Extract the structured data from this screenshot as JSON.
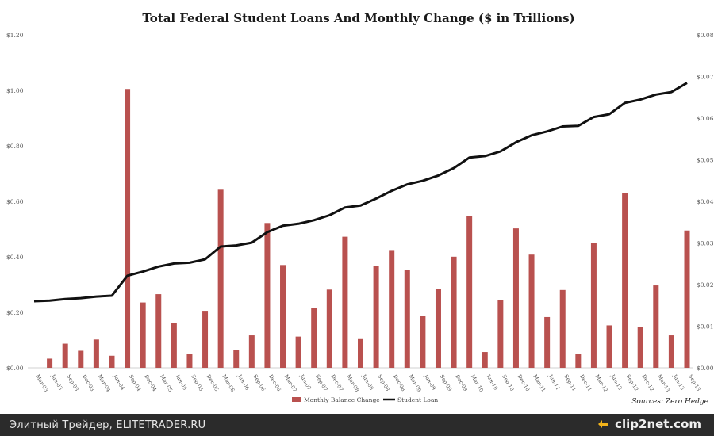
{
  "chart_data": {
    "type": "bar+line",
    "title": "Total Federal Student Loans And Monthly Change ($ in Trillions)",
    "y_left": {
      "ticks": [
        "$0.00",
        "$0.20",
        "$0.40",
        "$0.60",
        "$0.80",
        "$1.00",
        "$1.20"
      ],
      "ylim": [
        0,
        1.2
      ]
    },
    "y_right": {
      "ticks": [
        "$0.00",
        "$0.01",
        "$0.02",
        "$0.03",
        "$0.04",
        "$0.05",
        "$0.06",
        "$0.07",
        "$0.08"
      ],
      "ylim": [
        0,
        0.08
      ]
    },
    "x_tick_labels": [
      "Mar-03",
      "Jun-03",
      "Sep-03",
      "Dec-03",
      "Mar-04",
      "Jun-04",
      "Sep-04",
      "Dec-04",
      "Mar-05",
      "Jun-05",
      "Sep-05",
      "Dec-05",
      "Mar-06",
      "Jun-06",
      "Sep-06",
      "Dec-06",
      "Mar-07",
      "Jun-07",
      "Sep-07",
      "Dec-07",
      "Mar-08",
      "Jun-08",
      "Sep-08",
      "Dec-08",
      "Mar-09",
      "Jun-09",
      "Sep-09",
      "Dec-09",
      "Mar-10",
      "Jun-10",
      "Sep-10",
      "Dec-10",
      "Mar-11",
      "Jun-11",
      "Sep-11",
      "Dec-11",
      "Mar-12",
      "Jun-12",
      "Sep-12",
      "Dec-12",
      "Mar-13",
      "Jun-13",
      "Sep-13"
    ],
    "series": [
      {
        "name": "Monthly Balance Change",
        "type": "bar",
        "axis": "right",
        "color": "#b9514f",
        "values": [
          null,
          0.0022,
          0.0058,
          0.0041,
          0.0068,
          0.0029,
          0.067,
          0.0157,
          0.0177,
          0.0107,
          0.0033,
          0.0137,
          0.0428,
          0.0043,
          0.0078,
          0.0348,
          0.0247,
          0.0075,
          0.0143,
          0.0188,
          0.0315,
          0.0069,
          0.0245,
          0.0283,
          0.0235,
          0.0125,
          0.019,
          0.0267,
          0.0365,
          0.0038,
          0.0163,
          0.0335,
          0.0272,
          0.0122,
          0.0187,
          0.0033,
          0.03,
          0.0102,
          0.042,
          0.0098,
          0.0198,
          0.0078,
          0.033
        ]
      },
      {
        "name": "Student Loan",
        "type": "line",
        "axis": "left",
        "color": "#111111",
        "values": [
          0.24,
          0.242,
          0.248,
          0.251,
          0.257,
          0.26,
          0.332,
          0.347,
          0.365,
          0.376,
          0.379,
          0.391,
          0.437,
          0.441,
          0.451,
          0.489,
          0.512,
          0.519,
          0.532,
          0.55,
          0.578,
          0.585,
          0.61,
          0.638,
          0.661,
          0.674,
          0.693,
          0.72,
          0.758,
          0.763,
          0.78,
          0.813,
          0.838,
          0.852,
          0.87,
          0.872,
          0.904,
          0.914,
          0.955,
          0.967,
          0.985,
          0.994,
          1.027
        ]
      }
    ],
    "legend": [
      "Monthly Balance Change",
      "Student Loan"
    ],
    "legend_position": "bottom-center",
    "source": "Sources:  Zero Hedge"
  },
  "footer": {
    "site": "Элитный Трейдер, ELITETRADER.RU",
    "brand": "clip2net.com"
  }
}
